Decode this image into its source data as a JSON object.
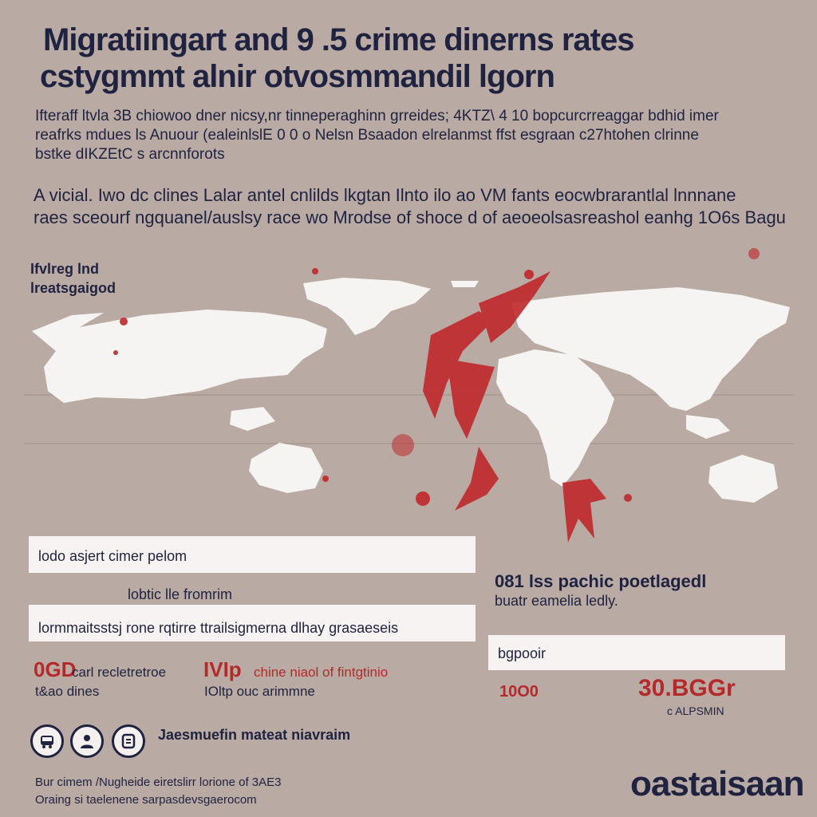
{
  "header": {
    "title_line1": "Migratiingart and  9 .5 crime dinerns rates",
    "title_line2": "cstygmmt alnir otvosmmandil lgorn"
  },
  "intro": {
    "line1": "Ifteraff ltvla 3B chiowoo dner nicsy,nr tinneperaghinn grreides; 4KTZ\\ 4 10 bopcurcrreaggar bdhid imer",
    "line2": "reafrks mdues ls Anuour (ealeinlslE 0 0  o  Nelsn Bsaadon elrelanmst ffst esgraan c27htohen clrinne",
    "line3": "bstke dIKZEtC s arcnnforots"
  },
  "summary": {
    "line1": "A vicial. Iwo  dc clines Lalar antel cnlilds lkgtan Ilnto  ilo ao  VM fants  eocwbrarantlal  lnnnane",
    "line2": "raes  sceourf ngquanel/auslsy race wo  Mrodse of shoce d of aeoeolsasreashol eanhg 1O6s Bagu"
  },
  "map": {
    "legend_line1": "Ifvlreg lnd",
    "legend_line2": "lreatsgaigod"
  },
  "panel_left": {
    "bar1_label": "lodo   asjert cimer pelom",
    "note": "lobtic  lle  fromrim",
    "bar2_label": "lormmaitsstsj rone rqtirre ttrailsigmerna  dlhay grasaeseis",
    "stat1_value": "0GD",
    "stat1_label1": "carl recletretroe",
    "stat1_label2": "t&ao dines",
    "stat2_value": "IVIp",
    "stat2_label1": "chine niaol of fintgtinio",
    "stat2_label2": "IOltp ouc arimmne"
  },
  "panel_right": {
    "heading1": "081 lss  pachic poetlagedl",
    "heading2": "buatr eamelia ledly.",
    "bar_label": "bgpooir",
    "stat1_value": "10O0",
    "stat2_value": "30.BGGr",
    "stat2_label": "c ALPSMIN"
  },
  "icons": [
    {
      "name": "bus-icon"
    },
    {
      "name": "person-icon"
    },
    {
      "name": "badge-icon"
    }
  ],
  "icons_caption": "Jaesmuefin mateat niavraim",
  "footer": {
    "line1": "Bur cimem /Nugheide  eiretslirr lorione of 3AE3",
    "line2": "Oraing si taelenene  sarpasdevsgaerocom",
    "brand": "oastaisaan"
  },
  "colors": {
    "background": "#b9aaa4",
    "navy": "#1f2340",
    "red": "#b42a2a",
    "land": "#f6f4f3"
  }
}
